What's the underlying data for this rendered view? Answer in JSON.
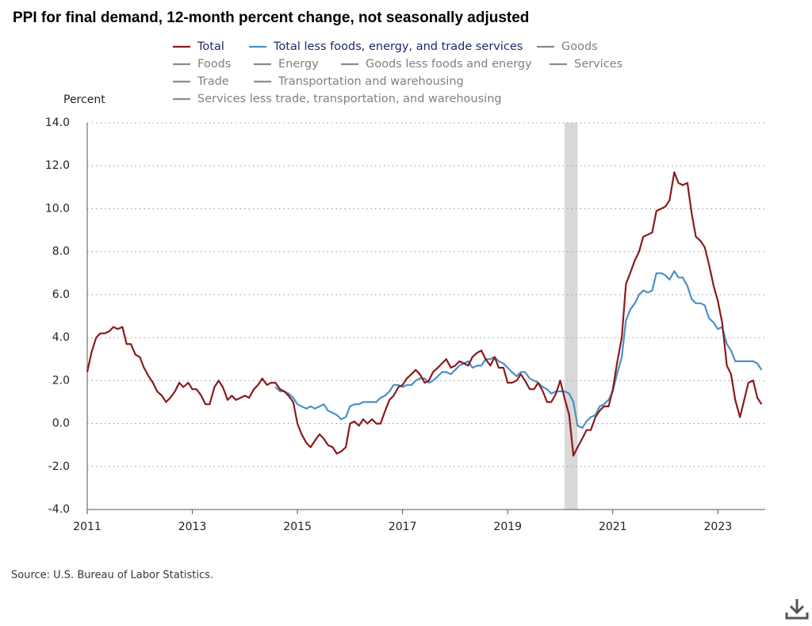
{
  "chart_data": {
    "type": "line",
    "title": "PPI for final demand, 12-month percent change, not seasonally adjusted",
    "y_label": "Percent",
    "source": "Source: U.S. Bureau of Labor Statistics.",
    "x": [
      2011,
      2011.08,
      2011.17,
      2011.25,
      2011.33,
      2011.42,
      2011.5,
      2011.58,
      2011.67,
      2011.75,
      2011.83,
      2011.92,
      2012,
      2012.08,
      2012.17,
      2012.25,
      2012.33,
      2012.42,
      2012.5,
      2012.58,
      2012.67,
      2012.75,
      2012.83,
      2012.92,
      2013,
      2013.08,
      2013.17,
      2013.25,
      2013.33,
      2013.42,
      2013.5,
      2013.58,
      2013.67,
      2013.75,
      2013.83,
      2013.92,
      2014,
      2014.08,
      2014.17,
      2014.25,
      2014.33,
      2014.42,
      2014.5,
      2014.58,
      2014.67,
      2014.75,
      2014.83,
      2014.92,
      2015,
      2015.08,
      2015.17,
      2015.25,
      2015.33,
      2015.42,
      2015.5,
      2015.58,
      2015.67,
      2015.75,
      2015.83,
      2015.92,
      2016,
      2016.08,
      2016.17,
      2016.25,
      2016.33,
      2016.42,
      2016.5,
      2016.58,
      2016.67,
      2016.75,
      2016.83,
      2016.92,
      2017,
      2017.08,
      2017.17,
      2017.25,
      2017.33,
      2017.42,
      2017.5,
      2017.58,
      2017.67,
      2017.75,
      2017.83,
      2017.92,
      2018,
      2018.08,
      2018.17,
      2018.25,
      2018.33,
      2018.42,
      2018.5,
      2018.58,
      2018.67,
      2018.75,
      2018.83,
      2018.92,
      2019,
      2019.08,
      2019.17,
      2019.25,
      2019.33,
      2019.42,
      2019.5,
      2019.58,
      2019.67,
      2019.75,
      2019.83,
      2019.92,
      2020,
      2020.08,
      2020.17,
      2020.25,
      2020.33,
      2020.42,
      2020.5,
      2020.58,
      2020.67,
      2020.75,
      2020.83,
      2020.92,
      2021,
      2021.08,
      2021.17,
      2021.25,
      2021.33,
      2021.42,
      2021.5,
      2021.58,
      2021.67,
      2021.75,
      2021.83,
      2021.92,
      2022,
      2022.08,
      2022.17,
      2022.25,
      2022.33,
      2022.42,
      2022.5,
      2022.58,
      2022.67,
      2022.75,
      2022.83,
      2022.92,
      2023,
      2023.08,
      2023.17,
      2023.25,
      2023.33,
      2023.42,
      2023.5,
      2023.58,
      2023.67,
      2023.75,
      2023.83
    ],
    "series": [
      {
        "name": "Total",
        "color": "#8b1a1a",
        "values": [
          2.4,
          3.3,
          4.0,
          4.2,
          4.2,
          4.3,
          4.5,
          4.4,
          4.5,
          3.7,
          3.7,
          3.2,
          3.1,
          2.6,
          2.2,
          1.9,
          1.5,
          1.3,
          1.0,
          1.2,
          1.5,
          1.9,
          1.7,
          1.9,
          1.6,
          1.6,
          1.3,
          0.9,
          0.9,
          1.7,
          2.0,
          1.7,
          1.1,
          1.3,
          1.1,
          1.2,
          1.3,
          1.2,
          1.6,
          1.8,
          2.1,
          1.8,
          1.9,
          1.9,
          1.6,
          1.5,
          1.3,
          1.0,
          0.0,
          -0.5,
          -0.9,
          -1.1,
          -0.8,
          -0.5,
          -0.7,
          -1.0,
          -1.1,
          -1.4,
          -1.3,
          -1.1,
          0.0,
          0.1,
          -0.1,
          0.2,
          0.0,
          0.2,
          0.0,
          0.0,
          0.6,
          1.1,
          1.3,
          1.7,
          1.8,
          2.1,
          2.3,
          2.5,
          2.3,
          1.9,
          2.0,
          2.4,
          2.6,
          2.8,
          3.0,
          2.6,
          2.7,
          2.9,
          2.8,
          2.7,
          3.1,
          3.3,
          3.4,
          3.0,
          2.7,
          3.1,
          2.6,
          2.6,
          1.9,
          1.9,
          2.0,
          2.3,
          2.0,
          1.6,
          1.6,
          1.9,
          1.5,
          1.0,
          1.0,
          1.4,
          2.0,
          1.2,
          0.4,
          -1.5,
          -1.1,
          -0.7,
          -0.3,
          -0.3,
          0.3,
          0.6,
          0.8,
          0.8,
          1.6,
          2.8,
          4.0,
          6.5,
          7.0,
          7.6,
          8.0,
          8.7,
          8.8,
          8.9,
          9.9,
          10.0,
          10.1,
          10.4,
          11.7,
          11.2,
          11.1,
          11.2,
          9.8,
          8.7,
          8.5,
          8.2,
          7.4,
          6.4,
          5.7,
          4.7,
          2.7,
          2.3,
          1.1,
          0.3,
          1.1,
          1.9,
          2.0,
          1.2,
          0.9
        ]
      },
      {
        "name": "Total less foods, energy, and trade services",
        "color": "#4a90c8",
        "values": [
          null,
          null,
          null,
          null,
          null,
          null,
          null,
          null,
          null,
          null,
          null,
          null,
          null,
          null,
          null,
          null,
          null,
          null,
          null,
          null,
          null,
          null,
          null,
          null,
          null,
          null,
          null,
          null,
          null,
          null,
          null,
          null,
          null,
          null,
          null,
          null,
          null,
          null,
          null,
          null,
          null,
          null,
          null,
          1.7,
          1.5,
          1.5,
          1.4,
          1.2,
          0.9,
          0.8,
          0.7,
          0.8,
          0.7,
          0.8,
          0.9,
          0.6,
          0.5,
          0.4,
          0.2,
          0.3,
          0.8,
          0.9,
          0.9,
          1.0,
          1.0,
          1.0,
          1.0,
          1.2,
          1.3,
          1.5,
          1.8,
          1.8,
          1.7,
          1.8,
          1.8,
          2.0,
          2.1,
          2.1,
          1.9,
          2.0,
          2.2,
          2.4,
          2.4,
          2.3,
          2.5,
          2.7,
          2.8,
          2.9,
          2.6,
          2.7,
          2.7,
          3.0,
          3.0,
          3.1,
          2.9,
          2.8,
          2.6,
          2.4,
          2.2,
          2.4,
          2.4,
          2.1,
          2.0,
          1.9,
          1.7,
          1.6,
          1.4,
          1.5,
          1.5,
          1.5,
          1.4,
          1.0,
          -0.1,
          -0.2,
          0.1,
          0.3,
          0.4,
          0.8,
          0.9,
          1.1,
          1.5,
          2.3,
          3.1,
          4.8,
          5.3,
          5.6,
          6.0,
          6.2,
          6.1,
          6.2,
          7.0,
          7.0,
          6.9,
          6.7,
          7.1,
          6.8,
          6.8,
          6.4,
          5.8,
          5.6,
          5.6,
          5.5,
          4.9,
          4.7,
          4.4,
          4.5,
          3.7,
          3.4,
          2.9,
          2.9,
          2.9,
          2.9,
          2.9,
          2.8,
          2.5
        ]
      }
    ],
    "inactive_series": [
      {
        "name": "Goods",
        "color": "#8c8c8c"
      },
      {
        "name": "Foods",
        "color": "#8c8c8c"
      },
      {
        "name": "Energy",
        "color": "#8c8c8c"
      },
      {
        "name": "Goods less foods and energy",
        "color": "#8c8c8c"
      },
      {
        "name": "Services",
        "color": "#8c8c8c"
      },
      {
        "name": "Trade",
        "color": "#8c8c8c"
      },
      {
        "name": "Transportation and warehousing",
        "color": "#8c8c8c"
      },
      {
        "name": "Services less trade, transportation, and warehousing",
        "color": "#8c8c8c"
      }
    ],
    "recession": {
      "start": 2020.08,
      "end": 2020.33,
      "color": "#d9d9d9"
    },
    "xlim": [
      2011,
      2023.9
    ],
    "xticks": [
      2011,
      2013,
      2015,
      2017,
      2019,
      2021,
      2023
    ],
    "ylim": [
      -4,
      14
    ],
    "yticks": [
      {
        "value": -4,
        "label": "-4.0"
      },
      {
        "value": -2,
        "label": "-2.0"
      },
      {
        "value": 0,
        "label": "0.0"
      },
      {
        "value": 2,
        "label": "2.0"
      },
      {
        "value": 4,
        "label": "4.0"
      },
      {
        "value": 6,
        "label": "6.0"
      },
      {
        "value": 8,
        "label": "8.0"
      },
      {
        "value": 10,
        "label": "10.0"
      },
      {
        "value": 12,
        "label": "12.0"
      },
      {
        "value": 14,
        "label": "14.0"
      }
    ],
    "grid": true
  }
}
